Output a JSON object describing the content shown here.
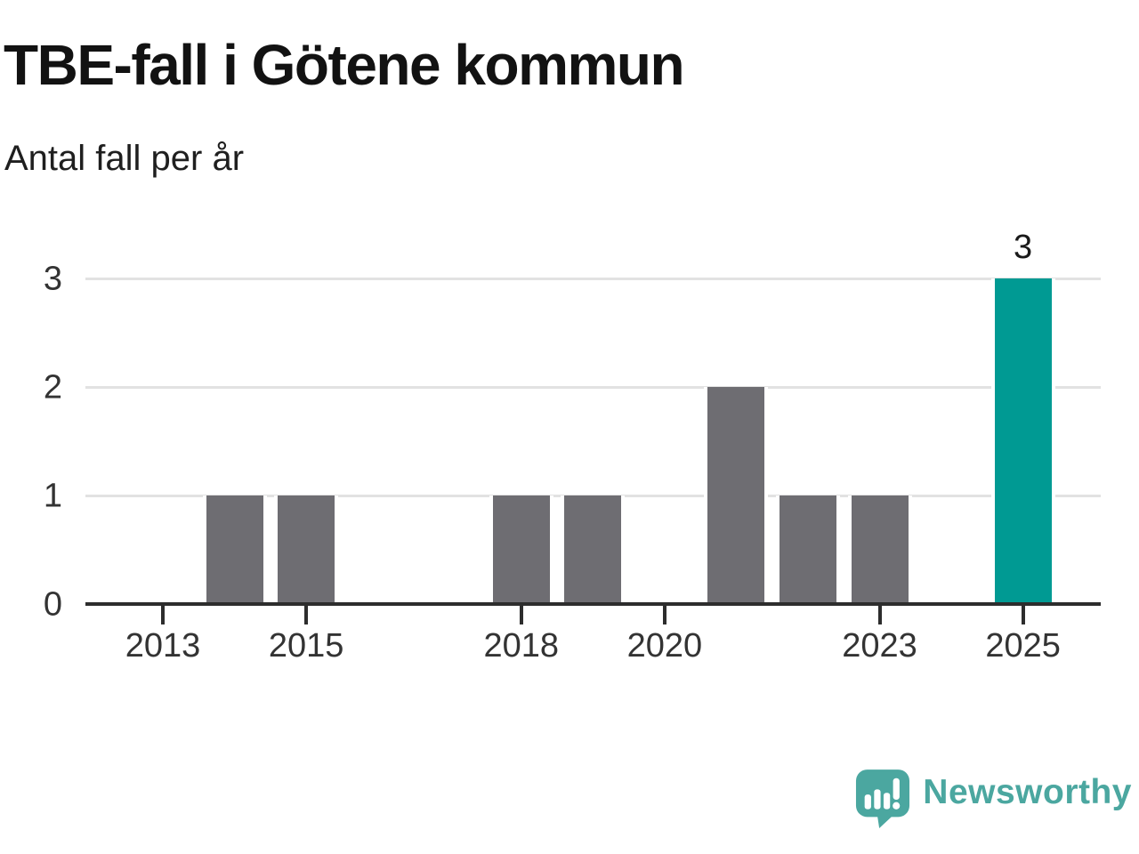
{
  "header": {
    "title": "TBE-fall i Götene kommun",
    "subtitle": "Antal fall per år"
  },
  "chart_data": {
    "type": "bar",
    "title": "TBE-fall i Götene kommun",
    "subtitle": "Antal fall per år",
    "xlabel": "",
    "ylabel": "Antal fall per år",
    "years": [
      2012,
      2013,
      2014,
      2015,
      2016,
      2017,
      2018,
      2019,
      2020,
      2021,
      2022,
      2023,
      2024,
      2025
    ],
    "values": [
      0,
      0,
      1,
      1,
      0,
      0,
      1,
      1,
      0,
      2,
      1,
      1,
      0,
      3
    ],
    "highlight_year": 2025,
    "highlight_value_label": "3",
    "xticks": [
      2013,
      2015,
      2018,
      2020,
      2023,
      2025
    ],
    "yticks": [
      0,
      1,
      2,
      3
    ],
    "ylim": [
      0,
      3
    ],
    "grid": true,
    "legend": "none",
    "colors": {
      "bar": "#6e6d72",
      "highlight_bar": "#009a93",
      "gridline": "#e2e2e2",
      "axis": "#2d2d2d",
      "tick_label": "#333333",
      "title": "#121212",
      "subtitle": "#1f1f1f"
    }
  },
  "footer": {
    "brand": "Newsworthy",
    "logo_color": "#4ba7a0"
  }
}
